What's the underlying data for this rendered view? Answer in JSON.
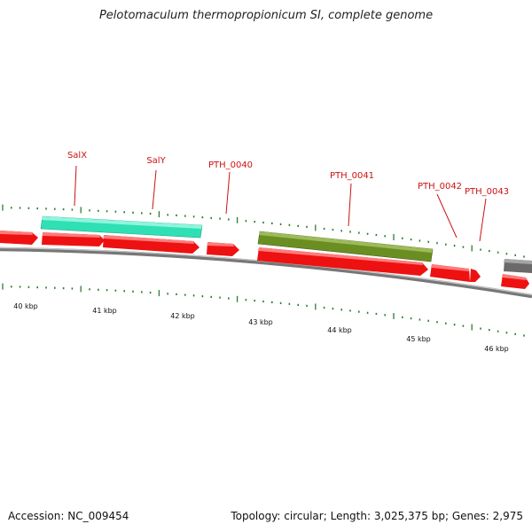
{
  "title": "Pelotomaculum thermopropionicum SI, complete genome",
  "footer": {
    "accession_label": "Accession:",
    "accession_value": "NC_009454",
    "topology_label": "Topology:",
    "topology_value": "circular",
    "length_label": "Length:",
    "length_value": "3,025,375 bp",
    "genes_label": "Genes:",
    "genes_value": "2,975"
  },
  "scale_labels": [
    "40 kbp",
    "41 kbp",
    "42 kbp",
    "43 kbp",
    "44 kbp",
    "45 kbp",
    "46 kbp"
  ],
  "gene_labels": [
    "SalX",
    "SalY",
    "PTH_0040",
    "PTH_0041",
    "PTH_0042",
    "PTH_0043"
  ],
  "colors": {
    "label_red": "#cc1111",
    "cds_red": "#ee1111",
    "salx_cyan": "#33ddaa",
    "pth0041_olive": "#6b8e23",
    "gray_feature": "#666666",
    "tick_green": "#2e7d32",
    "backbone": "#888888"
  }
}
